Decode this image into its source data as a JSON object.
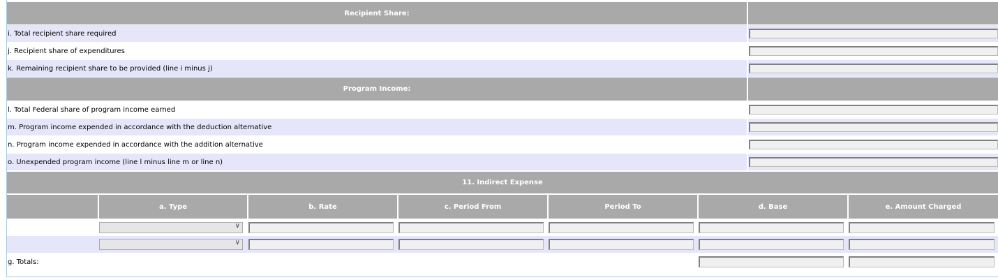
{
  "recipient_share": {
    "header": "Recipient Share:",
    "rows": [
      {
        "label": "i. Total recipient share required",
        "value": ""
      },
      {
        "label": "j. Recipient share of expenditures",
        "value": ""
      },
      {
        "label": "k. Remaining recipient share to be provided (line i minus j)",
        "value": ""
      }
    ]
  },
  "program_income": {
    "header": "Program Income:",
    "rows": [
      {
        "label": "l. Total Federal share of program income earned",
        "value": ""
      },
      {
        "label": "m. Program income expended in accordance with the deduction alternative",
        "value": ""
      },
      {
        "label": "n. Program income expended in accordance with the addition alternative",
        "value": ""
      },
      {
        "label": "o. Unexpended program income (line l minus line m or line n)",
        "value": ""
      }
    ]
  },
  "indirect_expense": {
    "header": "11. Indirect Expense",
    "columns": [
      "a. Type",
      "b. Rate",
      "c. Period From",
      "Period To",
      "d. Base",
      "e. Amount Charged"
    ],
    "rows": [
      {
        "type": "",
        "rate": "",
        "from": "",
        "to": "",
        "base": "",
        "amount": ""
      },
      {
        "type": "",
        "rate": "",
        "from": "",
        "to": "",
        "base": "",
        "amount": ""
      }
    ],
    "totals_label": "g. Totals:"
  },
  "colors": {
    "header_bg": "#a9a9a9",
    "alt_row": "#e6e6fa"
  }
}
